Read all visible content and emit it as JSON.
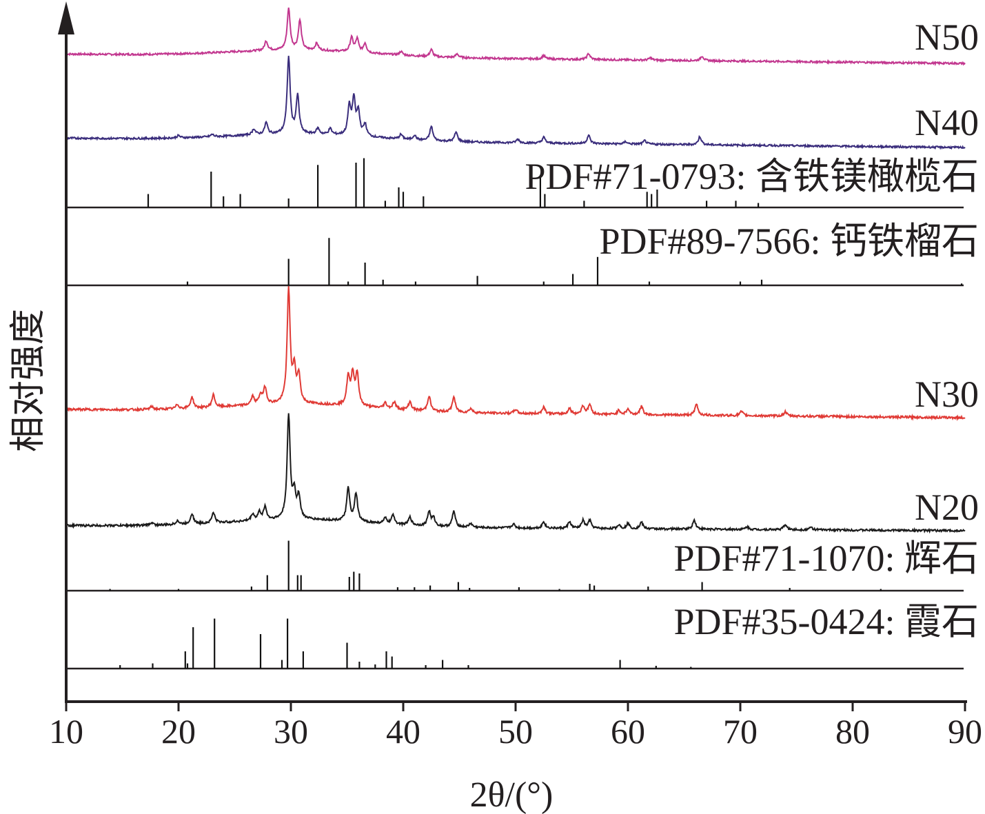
{
  "chart_data": {
    "type": "line",
    "xlabel": "2θ/(°)",
    "ylabel": "相对强度",
    "xlim": [
      10,
      90
    ],
    "x_ticks": [
      "10",
      "20",
      "30",
      "40",
      "50",
      "60",
      "70",
      "80",
      "90"
    ],
    "grid": false,
    "series": [
      {
        "name": "N50",
        "color": "#c2378f",
        "kind": "xrd",
        "baseline_start": 0.8,
        "baseline_end": 0.0,
        "peaks": [
          [
            27.8,
            0.8
          ],
          [
            29.8,
            3.5
          ],
          [
            30.8,
            2.5
          ],
          [
            32.3,
            0.6
          ],
          [
            35.4,
            1.2
          ],
          [
            35.9,
            1.1
          ],
          [
            36.6,
            0.8
          ],
          [
            39.8,
            0.3
          ],
          [
            42.5,
            0.6
          ],
          [
            44.8,
            0.3
          ],
          [
            52.5,
            0.3
          ],
          [
            56.5,
            0.5
          ],
          [
            62.0,
            0.2
          ],
          [
            66.6,
            0.4
          ]
        ]
      },
      {
        "name": "N40",
        "color": "#3a2d7c",
        "kind": "xrd",
        "baseline_start": 0.8,
        "baseline_end": 0.0,
        "peaks": [
          [
            20.0,
            0.2
          ],
          [
            23.0,
            0.2
          ],
          [
            26.7,
            0.5
          ],
          [
            27.8,
            1.0
          ],
          [
            29.8,
            6.5
          ],
          [
            30.6,
            3.2
          ],
          [
            32.4,
            0.5
          ],
          [
            33.5,
            0.5
          ],
          [
            35.2,
            2.4
          ],
          [
            35.6,
            3.0
          ],
          [
            36.0,
            2.0
          ],
          [
            36.6,
            1.0
          ],
          [
            39.8,
            0.4
          ],
          [
            41.0,
            0.4
          ],
          [
            42.5,
            1.2
          ],
          [
            44.7,
            0.8
          ],
          [
            50.2,
            0.3
          ],
          [
            52.5,
            0.5
          ],
          [
            56.5,
            0.7
          ],
          [
            59.8,
            0.2
          ],
          [
            61.5,
            0.3
          ],
          [
            66.4,
            0.7
          ]
        ]
      },
      {
        "name": "N30",
        "color": "#e03a35",
        "kind": "xrd",
        "baseline_start": 0.6,
        "baseline_end": 0.0,
        "peaks": [
          [
            17.6,
            0.2
          ],
          [
            19.9,
            0.3
          ],
          [
            21.2,
            0.8
          ],
          [
            23.1,
            0.9
          ],
          [
            26.6,
            0.6
          ],
          [
            27.3,
            0.7
          ],
          [
            27.7,
            1.2
          ],
          [
            29.8,
            8.2
          ],
          [
            30.3,
            2.3
          ],
          [
            30.7,
            2.0
          ],
          [
            35.1,
            2.0
          ],
          [
            35.5,
            2.2
          ],
          [
            35.9,
            2.3
          ],
          [
            38.4,
            0.4
          ],
          [
            39.2,
            0.5
          ],
          [
            40.6,
            0.6
          ],
          [
            42.3,
            1.1
          ],
          [
            44.5,
            1.1
          ],
          [
            46.0,
            0.3
          ],
          [
            50.0,
            0.3
          ],
          [
            52.5,
            0.5
          ],
          [
            54.8,
            0.4
          ],
          [
            56.0,
            0.6
          ],
          [
            56.6,
            0.7
          ],
          [
            59.2,
            0.3
          ],
          [
            60.0,
            0.4
          ],
          [
            61.2,
            0.6
          ],
          [
            66.1,
            0.8
          ],
          [
            70.1,
            0.3
          ],
          [
            74.0,
            0.3
          ]
        ]
      },
      {
        "name": "N20",
        "color": "#1a1a1a",
        "kind": "xrd",
        "baseline_start": 0.4,
        "baseline_end": 0.0,
        "peaks": [
          [
            17.6,
            0.2
          ],
          [
            19.9,
            0.3
          ],
          [
            21.2,
            0.8
          ],
          [
            23.1,
            0.8
          ],
          [
            26.6,
            0.5
          ],
          [
            27.2,
            0.6
          ],
          [
            27.7,
            1.0
          ],
          [
            29.8,
            7.9
          ],
          [
            30.3,
            1.9
          ],
          [
            30.7,
            1.7
          ],
          [
            35.1,
            2.5
          ],
          [
            35.8,
            2.1
          ],
          [
            38.4,
            0.4
          ],
          [
            39.1,
            0.7
          ],
          [
            40.6,
            0.6
          ],
          [
            42.3,
            1.1
          ],
          [
            42.7,
            0.6
          ],
          [
            44.5,
            1.2
          ],
          [
            46.0,
            0.3
          ],
          [
            49.8,
            0.3
          ],
          [
            52.5,
            0.5
          ],
          [
            54.8,
            0.5
          ],
          [
            56.0,
            0.6
          ],
          [
            56.6,
            0.6
          ],
          [
            59.2,
            0.3
          ],
          [
            60.0,
            0.4
          ],
          [
            61.2,
            0.5
          ],
          [
            65.9,
            0.7
          ],
          [
            70.6,
            0.2
          ],
          [
            74.0,
            0.4
          ],
          [
            76.3,
            0.2
          ]
        ]
      }
    ],
    "reference_patterns": [
      {
        "name": "PDF#71-0793: 含铁镁橄榄石",
        "color": "#111111",
        "sticks": [
          [
            17.3,
            0.3
          ],
          [
            22.9,
            0.8
          ],
          [
            24.0,
            0.25
          ],
          [
            25.5,
            0.3
          ],
          [
            29.8,
            0.2
          ],
          [
            32.4,
            0.95
          ],
          [
            35.8,
            1.0
          ],
          [
            36.5,
            1.1
          ],
          [
            38.4,
            0.15
          ],
          [
            39.6,
            0.45
          ],
          [
            40.0,
            0.35
          ],
          [
            41.8,
            0.25
          ],
          [
            52.2,
            0.7
          ],
          [
            52.6,
            0.3
          ],
          [
            56.1,
            0.15
          ],
          [
            61.7,
            0.35
          ],
          [
            62.1,
            0.3
          ],
          [
            62.6,
            0.4
          ],
          [
            67.0,
            0.15
          ],
          [
            69.6,
            0.15
          ],
          [
            71.6,
            0.1
          ]
        ]
      },
      {
        "name": "PDF#89-7566: 钙铁榴石",
        "color": "#111111",
        "sticks": [
          [
            20.8,
            0.1
          ],
          [
            29.8,
            0.7
          ],
          [
            33.4,
            1.25
          ],
          [
            35.1,
            0.1
          ],
          [
            36.6,
            0.6
          ],
          [
            38.2,
            0.15
          ],
          [
            41.1,
            0.1
          ],
          [
            46.6,
            0.25
          ],
          [
            52.5,
            0.1
          ],
          [
            55.1,
            0.3
          ],
          [
            57.3,
            0.75
          ],
          [
            61.9,
            0.1
          ],
          [
            70.0,
            0.1
          ],
          [
            71.9,
            0.15
          ],
          [
            89.7,
            0.05
          ]
        ]
      },
      {
        "name": "PDF#71-1070: 辉石",
        "color": "#111111",
        "sticks": [
          [
            13.9,
            0.05
          ],
          [
            20.0,
            0.05
          ],
          [
            26.5,
            0.12
          ],
          [
            27.9,
            0.45
          ],
          [
            29.8,
            1.45
          ],
          [
            30.6,
            0.45
          ],
          [
            30.9,
            0.45
          ],
          [
            35.2,
            0.4
          ],
          [
            35.6,
            0.55
          ],
          [
            36.1,
            0.5
          ],
          [
            39.5,
            0.1
          ],
          [
            41.0,
            0.1
          ],
          [
            42.4,
            0.15
          ],
          [
            44.9,
            0.25
          ],
          [
            45.9,
            0.08
          ],
          [
            50.3,
            0.1
          ],
          [
            53.9,
            0.05
          ],
          [
            56.6,
            0.2
          ],
          [
            57.0,
            0.15
          ],
          [
            61.8,
            0.12
          ],
          [
            66.6,
            0.25
          ],
          [
            74.4,
            0.08
          ],
          [
            82.5,
            0.05
          ]
        ]
      },
      {
        "name": "PDF#35-0424: 霞石",
        "color": "#111111",
        "sticks": [
          [
            14.8,
            0.1
          ],
          [
            17.7,
            0.15
          ],
          [
            20.6,
            0.5
          ],
          [
            20.8,
            0.15
          ],
          [
            21.3,
            1.2
          ],
          [
            23.2,
            1.45
          ],
          [
            27.3,
            1.0
          ],
          [
            29.2,
            0.25
          ],
          [
            29.7,
            1.45
          ],
          [
            31.1,
            0.5
          ],
          [
            35.0,
            0.75
          ],
          [
            36.1,
            0.2
          ],
          [
            37.5,
            0.12
          ],
          [
            38.5,
            0.5
          ],
          [
            39.0,
            0.35
          ],
          [
            42.0,
            0.1
          ],
          [
            43.5,
            0.25
          ],
          [
            45.8,
            0.1
          ],
          [
            59.3,
            0.25
          ],
          [
            62.5,
            0.08
          ],
          [
            65.6,
            0.05
          ]
        ]
      }
    ]
  }
}
